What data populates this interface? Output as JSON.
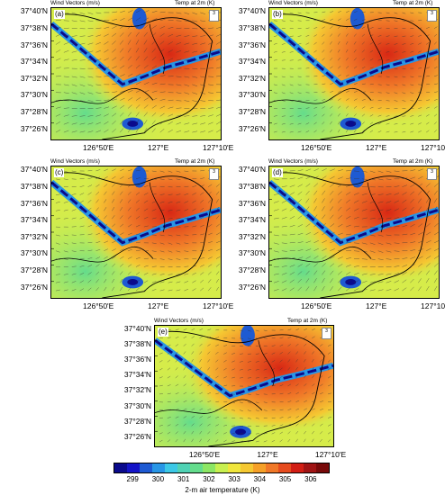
{
  "header": {
    "left": "Wind Vectors (m/s)",
    "right": "Temp at 2m (K)"
  },
  "ref_vector": "3",
  "panels": [
    {
      "label": "(a)"
    },
    {
      "label": "(b)"
    },
    {
      "label": "(c)"
    },
    {
      "label": "(d)"
    },
    {
      "label": "(e)"
    }
  ],
  "lat_labels": [
    "37°40'N",
    "37°38'N",
    "37°36'N",
    "37°34'N",
    "37°32'N",
    "37°30'N",
    "37°28'N",
    "37°26'N"
  ],
  "lon_labels": [
    "126°50'E",
    "127°E",
    "127°10'E"
  ],
  "colorbar": {
    "title": "2-m air temperature (K)",
    "ticks": [
      "299",
      "300",
      "301",
      "302",
      "303",
      "304",
      "305",
      "306"
    ],
    "colors": [
      "#0a0a8c",
      "#1414c8",
      "#1e5ad2",
      "#2896e6",
      "#3cc8e6",
      "#50d2b4",
      "#64dc8c",
      "#8ce664",
      "#c8f050",
      "#f0e63c",
      "#f5c832",
      "#f5a028",
      "#f07828",
      "#e64b1e",
      "#d21e14",
      "#a01414",
      "#780a0a"
    ]
  }
}
